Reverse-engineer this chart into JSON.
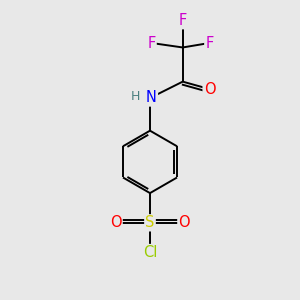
{
  "bg_color": "#e8e8e8",
  "atom_colors": {
    "C": "#000000",
    "H": "#4a8080",
    "N": "#0000ff",
    "O": "#ff0000",
    "S": "#cccc00",
    "F": "#cc00cc",
    "Cl": "#99cc00"
  },
  "bond_color": "#000000",
  "figsize": [
    3.0,
    3.0
  ],
  "dpi": 100,
  "xlim": [
    0,
    10
  ],
  "ylim": [
    0,
    10
  ]
}
